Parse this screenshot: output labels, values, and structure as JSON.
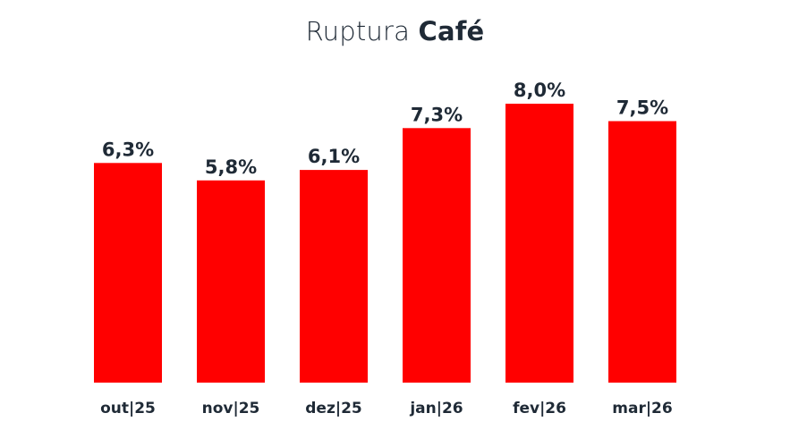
{
  "title": {
    "light": "Ruptura",
    "bold": "Café"
  },
  "colors": {
    "bar": "#ff0000",
    "text": "#1f2a36"
  },
  "chart_data": {
    "type": "bar",
    "title": "Ruptura Café",
    "categories": [
      "out|25",
      "nov|25",
      "dez|25",
      "jan|26",
      "fev|26",
      "mar|26"
    ],
    "values": [
      6.3,
      5.8,
      6.1,
      7.3,
      8.0,
      7.5
    ],
    "value_labels": [
      "6,3%",
      "5,8%",
      "6,1%",
      "7,3%",
      "8,0%",
      "7,5%"
    ],
    "xlabel": "",
    "ylabel": "",
    "grid": false,
    "legend": "none"
  }
}
